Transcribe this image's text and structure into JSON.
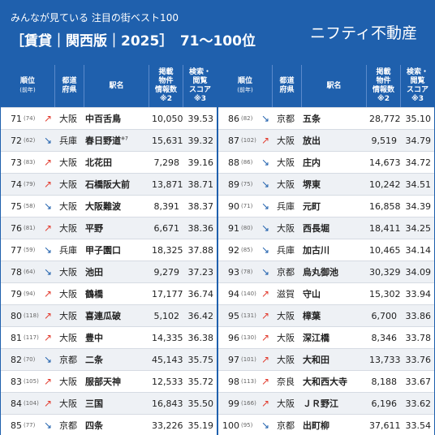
{
  "header": {
    "subtitle": "みんなが見ている 注目の街ベスト100",
    "title": "［賃貸｜関西版｜2025］　71〜100位",
    "logo": "ニフティ不動産"
  },
  "columns": {
    "rank": "順位",
    "rank_sub": "(前年)",
    "pref_1": "都道",
    "pref_2": "府県",
    "station": "駅名",
    "count_1": "掲載",
    "count_2": "物件",
    "count_3": "情報数",
    "count_4": "※2",
    "score_1": "検索・",
    "score_2": "閲覧",
    "score_3": "スコア",
    "score_4": "※3"
  },
  "colors": {
    "header_bg": "#1f60ad",
    "arrow_up": "#e23b2e",
    "arrow_down": "#1f60ad",
    "row_alt": "#eef1f5"
  },
  "rows_left": [
    {
      "rank": "71",
      "prev": "(74)",
      "trend": "up",
      "arrow": "↗",
      "pref": "大阪",
      "station": "中百舌鳥",
      "note": "",
      "count": "10,050",
      "score": "39.53"
    },
    {
      "rank": "72",
      "prev": "(62)",
      "trend": "down",
      "arrow": "↘",
      "pref": "兵庫",
      "station": "春日野道",
      "note": "※7",
      "count": "15,631",
      "score": "39.32"
    },
    {
      "rank": "73",
      "prev": "(83)",
      "trend": "up",
      "arrow": "↗",
      "pref": "大阪",
      "station": "北花田",
      "note": "",
      "count": "7,298",
      "score": "39.16"
    },
    {
      "rank": "74",
      "prev": "(79)",
      "trend": "up",
      "arrow": "↗",
      "pref": "大阪",
      "station": "石橋阪大前",
      "note": "",
      "count": "13,871",
      "score": "38.71"
    },
    {
      "rank": "75",
      "prev": "(58)",
      "trend": "down",
      "arrow": "↘",
      "pref": "大阪",
      "station": "大阪難波",
      "note": "",
      "count": "8,391",
      "score": "38.37"
    },
    {
      "rank": "76",
      "prev": "(81)",
      "trend": "up",
      "arrow": "↗",
      "pref": "大阪",
      "station": "平野",
      "note": "",
      "count": "6,671",
      "score": "38.36"
    },
    {
      "rank": "77",
      "prev": "(59)",
      "trend": "down",
      "arrow": "↘",
      "pref": "兵庫",
      "station": "甲子園口",
      "note": "",
      "count": "18,325",
      "score": "37.88"
    },
    {
      "rank": "78",
      "prev": "(64)",
      "trend": "down",
      "arrow": "↘",
      "pref": "大阪",
      "station": "池田",
      "note": "",
      "count": "9,279",
      "score": "37.23"
    },
    {
      "rank": "79",
      "prev": "(94)",
      "trend": "up",
      "arrow": "↗",
      "pref": "大阪",
      "station": "鶴橋",
      "note": "",
      "count": "17,177",
      "score": "36.74"
    },
    {
      "rank": "80",
      "prev": "(118)",
      "trend": "up",
      "arrow": "↗",
      "pref": "大阪",
      "station": "喜連瓜破",
      "note": "",
      "count": "5,102",
      "score": "36.42"
    },
    {
      "rank": "81",
      "prev": "(117)",
      "trend": "up",
      "arrow": "↗",
      "pref": "大阪",
      "station": "豊中",
      "note": "",
      "count": "14,335",
      "score": "36.38"
    },
    {
      "rank": "82",
      "prev": "(70)",
      "trend": "down",
      "arrow": "↘",
      "pref": "京都",
      "station": "二条",
      "note": "",
      "count": "45,143",
      "score": "35.75"
    },
    {
      "rank": "83",
      "prev": "(105)",
      "trend": "up",
      "arrow": "↗",
      "pref": "大阪",
      "station": "服部天神",
      "note": "",
      "count": "12,533",
      "score": "35.72"
    },
    {
      "rank": "84",
      "prev": "(104)",
      "trend": "up",
      "arrow": "↗",
      "pref": "大阪",
      "station": "三国",
      "note": "",
      "count": "16,843",
      "score": "35.50"
    },
    {
      "rank": "85",
      "prev": "(77)",
      "trend": "down",
      "arrow": "↘",
      "pref": "京都",
      "station": "四条",
      "note": "",
      "count": "33,226",
      "score": "35.19"
    }
  ],
  "rows_right": [
    {
      "rank": "86",
      "prev": "(82)",
      "trend": "down",
      "arrow": "↘",
      "pref": "京都",
      "station": "五条",
      "note": "",
      "count": "28,772",
      "score": "35.10"
    },
    {
      "rank": "87",
      "prev": "(102)",
      "trend": "up",
      "arrow": "↗",
      "pref": "大阪",
      "station": "放出",
      "note": "",
      "count": "9,519",
      "score": "34.79"
    },
    {
      "rank": "88",
      "prev": "(86)",
      "trend": "down",
      "arrow": "↘",
      "pref": "大阪",
      "station": "庄内",
      "note": "",
      "count": "14,673",
      "score": "34.72"
    },
    {
      "rank": "89",
      "prev": "(75)",
      "trend": "down",
      "arrow": "↘",
      "pref": "大阪",
      "station": "堺東",
      "note": "",
      "count": "10,242",
      "score": "34.51"
    },
    {
      "rank": "90",
      "prev": "(71)",
      "trend": "down",
      "arrow": "↘",
      "pref": "兵庫",
      "station": "元町",
      "note": "",
      "count": "16,858",
      "score": "34.39"
    },
    {
      "rank": "91",
      "prev": "(80)",
      "trend": "down",
      "arrow": "↘",
      "pref": "大阪",
      "station": "西長堀",
      "note": "",
      "count": "18,411",
      "score": "34.25"
    },
    {
      "rank": "92",
      "prev": "(85)",
      "trend": "down",
      "arrow": "↘",
      "pref": "兵庫",
      "station": "加古川",
      "note": "",
      "count": "10,465",
      "score": "34.14"
    },
    {
      "rank": "93",
      "prev": "(78)",
      "trend": "down",
      "arrow": "↘",
      "pref": "京都",
      "station": "烏丸御池",
      "note": "",
      "count": "30,329",
      "score": "34.09"
    },
    {
      "rank": "94",
      "prev": "(140)",
      "trend": "up",
      "arrow": "↗",
      "pref": "滋賀",
      "station": "守山",
      "note": "",
      "count": "15,302",
      "score": "33.94"
    },
    {
      "rank": "95",
      "prev": "(131)",
      "trend": "up",
      "arrow": "↗",
      "pref": "大阪",
      "station": "樟葉",
      "note": "",
      "count": "6,700",
      "score": "33.86"
    },
    {
      "rank": "96",
      "prev": "(130)",
      "trend": "up",
      "arrow": "↗",
      "pref": "大阪",
      "station": "深江橋",
      "note": "",
      "count": "8,346",
      "score": "33.78"
    },
    {
      "rank": "97",
      "prev": "(101)",
      "trend": "up",
      "arrow": "↗",
      "pref": "大阪",
      "station": "大和田",
      "note": "",
      "count": "13,733",
      "score": "33.76"
    },
    {
      "rank": "98",
      "prev": "(113)",
      "trend": "up",
      "arrow": "↗",
      "pref": "奈良",
      "station": "大和西大寺",
      "note": "",
      "count": "8,188",
      "score": "33.67"
    },
    {
      "rank": "99",
      "prev": "(166)",
      "trend": "up",
      "arrow": "↗",
      "pref": "大阪",
      "station": "ＪＲ野江",
      "note": "",
      "count": "6,196",
      "score": "33.62"
    },
    {
      "rank": "100",
      "prev": "(95)",
      "trend": "down",
      "arrow": "↘",
      "pref": "京都",
      "station": "出町柳",
      "note": "",
      "count": "37,611",
      "score": "33.54"
    }
  ]
}
